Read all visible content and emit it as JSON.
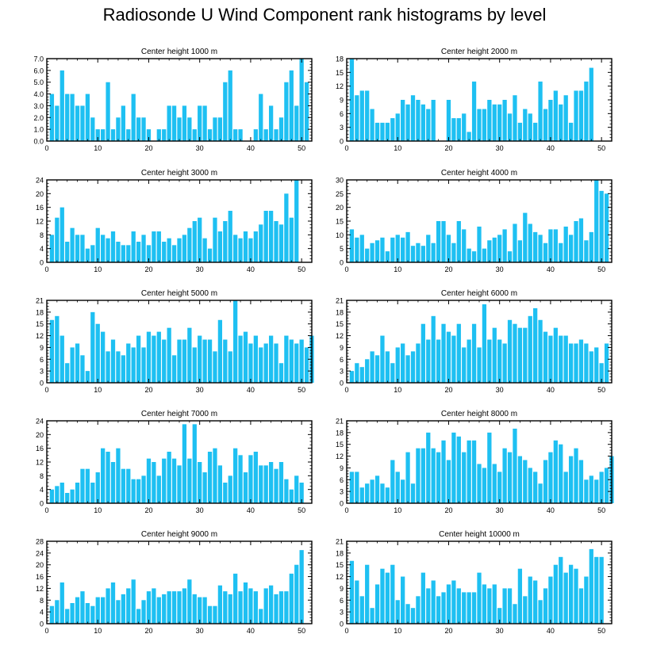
{
  "title": "Radiosonde U Wind Component rank histograms by level",
  "colors": {
    "bar": "#1ec0f2",
    "axis": "#000000",
    "background": "#ffffff"
  },
  "chart_data": [
    {
      "type": "bar",
      "title": "Center height 1000 m",
      "x": [
        0,
        1,
        2,
        3,
        4,
        5,
        6,
        7,
        8,
        9,
        10,
        11,
        12,
        13,
        14,
        15,
        16,
        17,
        18,
        19,
        20,
        21,
        22,
        23,
        24,
        25,
        26,
        27,
        28,
        29,
        30,
        31,
        32,
        33,
        34,
        35,
        36,
        37,
        38,
        39,
        40,
        41,
        42,
        43,
        44,
        45,
        46,
        47,
        48,
        49,
        50,
        51,
        52
      ],
      "values": [
        0,
        4,
        3,
        6,
        4,
        4,
        3,
        3,
        4,
        2,
        1,
        1,
        5,
        1,
        2,
        3,
        1,
        4,
        2,
        2,
        1,
        0,
        1,
        1,
        3,
        3,
        2,
        3,
        2,
        1,
        3,
        3,
        1,
        2,
        2,
        5,
        6,
        1,
        1,
        0,
        0,
        1,
        4,
        1,
        3,
        1,
        2,
        5,
        6,
        3,
        7,
        5,
        0
      ],
      "xlim": [
        0,
        52
      ],
      "ylim": [
        0,
        7
      ],
      "yticks": [
        "0.0",
        "1.0",
        "2.0",
        "3.0",
        "4.0",
        "5.0",
        "6.0",
        "7.0"
      ],
      "xticks": [
        "0",
        "10",
        "20",
        "30",
        "40",
        "50"
      ],
      "xlabel": "",
      "ylabel": ""
    },
    {
      "type": "bar",
      "title": "Center height 2000 m",
      "x": [
        0,
        1,
        2,
        3,
        4,
        5,
        6,
        7,
        8,
        9,
        10,
        11,
        12,
        13,
        14,
        15,
        16,
        17,
        18,
        19,
        20,
        21,
        22,
        23,
        24,
        25,
        26,
        27,
        28,
        29,
        30,
        31,
        32,
        33,
        34,
        35,
        36,
        37,
        38,
        39,
        40,
        41,
        42,
        43,
        44,
        45,
        46,
        47,
        48,
        49,
        50,
        51,
        52
      ],
      "values": [
        0,
        18,
        10,
        11,
        11,
        7,
        4,
        4,
        4,
        5,
        6,
        9,
        8,
        10,
        9,
        8,
        7,
        9,
        0,
        0,
        9,
        5,
        5,
        6,
        2,
        13,
        7,
        7,
        9,
        8,
        8,
        9,
        6,
        10,
        4,
        7,
        6,
        4,
        13,
        7,
        9,
        11,
        8,
        10,
        4,
        11,
        11,
        13,
        16,
        0,
        0,
        0,
        0
      ],
      "xlim": [
        0,
        52
      ],
      "ylim": [
        0,
        18
      ],
      "yticks": [
        "0",
        "3",
        "6",
        "9",
        "12",
        "15",
        "18"
      ],
      "xticks": [
        "0",
        "10",
        "20",
        "30",
        "40",
        "50"
      ],
      "xlabel": "",
      "ylabel": ""
    },
    {
      "type": "bar",
      "title": "Center height 3000 m",
      "x": [
        0,
        1,
        2,
        3,
        4,
        5,
        6,
        7,
        8,
        9,
        10,
        11,
        12,
        13,
        14,
        15,
        16,
        17,
        18,
        19,
        20,
        21,
        22,
        23,
        24,
        25,
        26,
        27,
        28,
        29,
        30,
        31,
        32,
        33,
        34,
        35,
        36,
        37,
        38,
        39,
        40,
        41,
        42,
        43,
        44,
        45,
        46,
        47,
        48,
        49,
        50,
        51,
        52
      ],
      "values": [
        0,
        8,
        13,
        16,
        6,
        10,
        8,
        8,
        4,
        5,
        10,
        8,
        7,
        9,
        6,
        5,
        5,
        9,
        6,
        8,
        5,
        9,
        9,
        6,
        7,
        5,
        7,
        8,
        10,
        12,
        13,
        7,
        4,
        13,
        9,
        12,
        15,
        8,
        7,
        9,
        7,
        9,
        11,
        15,
        15,
        12,
        11,
        20,
        13,
        24,
        0,
        0,
        0
      ],
      "xlim": [
        0,
        52
      ],
      "ylim": [
        0,
        24
      ],
      "yticks": [
        "0",
        "4",
        "8",
        "12",
        "16",
        "20",
        "24"
      ],
      "xticks": [
        "0",
        "10",
        "20",
        "30",
        "40",
        "50"
      ],
      "xlabel": "",
      "ylabel": ""
    },
    {
      "type": "bar",
      "title": "Center height 4000 m",
      "x": [
        0,
        1,
        2,
        3,
        4,
        5,
        6,
        7,
        8,
        9,
        10,
        11,
        12,
        13,
        14,
        15,
        16,
        17,
        18,
        19,
        20,
        21,
        22,
        23,
        24,
        25,
        26,
        27,
        28,
        29,
        30,
        31,
        32,
        33,
        34,
        35,
        36,
        37,
        38,
        39,
        40,
        41,
        42,
        43,
        44,
        45,
        46,
        47,
        48,
        49,
        50,
        51,
        52
      ],
      "values": [
        0,
        12,
        9,
        10,
        5,
        7,
        8,
        9,
        4,
        9,
        10,
        9,
        11,
        6,
        7,
        6,
        10,
        7,
        15,
        15,
        10,
        7,
        15,
        12,
        5,
        4,
        13,
        5,
        8,
        9,
        10,
        12,
        4,
        14,
        8,
        18,
        14,
        11,
        10,
        7,
        12,
        12,
        7,
        13,
        10,
        15,
        16,
        8,
        11,
        30,
        26,
        25,
        0
      ],
      "xlim": [
        0,
        52
      ],
      "ylim": [
        0,
        30
      ],
      "yticks": [
        "0",
        "5",
        "10",
        "15",
        "20",
        "25",
        "30"
      ],
      "xticks": [
        "0",
        "10",
        "20",
        "30",
        "40",
        "50"
      ],
      "xlabel": "",
      "ylabel": ""
    },
    {
      "type": "bar",
      "title": "Center height 5000 m",
      "x": [
        0,
        1,
        2,
        3,
        4,
        5,
        6,
        7,
        8,
        9,
        10,
        11,
        12,
        13,
        14,
        15,
        16,
        17,
        18,
        19,
        20,
        21,
        22,
        23,
        24,
        25,
        26,
        27,
        28,
        29,
        30,
        31,
        32,
        33,
        34,
        35,
        36,
        37,
        38,
        39,
        40,
        41,
        42,
        43,
        44,
        45,
        46,
        47,
        48,
        49,
        50,
        51,
        52
      ],
      "values": [
        0,
        16,
        17,
        12,
        5,
        9,
        10,
        7,
        3,
        18,
        15,
        13,
        8,
        11,
        8,
        7,
        10,
        9,
        12,
        9,
        13,
        12,
        13,
        11,
        14,
        7,
        11,
        11,
        14,
        9,
        12,
        11,
        11,
        8,
        16,
        11,
        8,
        21,
        12,
        13,
        10,
        12,
        9,
        10,
        12,
        10,
        5,
        12,
        11,
        10,
        11,
        9,
        12
      ],
      "xlim": [
        0,
        52
      ],
      "ylim": [
        0,
        21
      ],
      "yticks": [
        "0",
        "3",
        "6",
        "9",
        "12",
        "15",
        "18",
        "21"
      ],
      "xticks": [
        "0",
        "10",
        "20",
        "30",
        "40",
        "50"
      ],
      "xlabel": "",
      "ylabel": ""
    },
    {
      "type": "bar",
      "title": "Center height 6000 m",
      "x": [
        0,
        1,
        2,
        3,
        4,
        5,
        6,
        7,
        8,
        9,
        10,
        11,
        12,
        13,
        14,
        15,
        16,
        17,
        18,
        19,
        20,
        21,
        22,
        23,
        24,
        25,
        26,
        27,
        28,
        29,
        30,
        31,
        32,
        33,
        34,
        35,
        36,
        37,
        38,
        39,
        40,
        41,
        42,
        43,
        44,
        45,
        46,
        47,
        48,
        49,
        50,
        51,
        52
      ],
      "values": [
        0,
        3,
        5,
        4,
        6,
        8,
        7,
        12,
        8,
        5,
        9,
        10,
        7,
        8,
        10,
        15,
        11,
        17,
        11,
        15,
        13,
        12,
        15,
        9,
        11,
        15,
        9,
        20,
        11,
        14,
        11,
        10,
        16,
        15,
        14,
        14,
        17,
        19,
        16,
        13,
        12,
        14,
        12,
        12,
        10,
        10,
        11,
        10,
        8,
        9,
        5,
        10,
        0
      ],
      "xlim": [
        0,
        52
      ],
      "ylim": [
        0,
        21
      ],
      "yticks": [
        "0",
        "3",
        "6",
        "9",
        "12",
        "15",
        "18",
        "21"
      ],
      "xticks": [
        "0",
        "10",
        "20",
        "30",
        "40",
        "50"
      ],
      "xlabel": "",
      "ylabel": ""
    },
    {
      "type": "bar",
      "title": "Center height 7000 m",
      "x": [
        0,
        1,
        2,
        3,
        4,
        5,
        6,
        7,
        8,
        9,
        10,
        11,
        12,
        13,
        14,
        15,
        16,
        17,
        18,
        19,
        20,
        21,
        22,
        23,
        24,
        25,
        26,
        27,
        28,
        29,
        30,
        31,
        32,
        33,
        34,
        35,
        36,
        37,
        38,
        39,
        40,
        41,
        42,
        43,
        44,
        45,
        46,
        47,
        48,
        49,
        50,
        51,
        52
      ],
      "values": [
        0,
        4,
        5,
        6,
        3,
        4,
        6,
        10,
        10,
        6,
        9,
        16,
        15,
        12,
        16,
        10,
        10,
        7,
        7,
        8,
        13,
        12,
        8,
        13,
        15,
        13,
        11,
        23,
        13,
        23,
        12,
        9,
        15,
        16,
        11,
        6,
        8,
        16,
        14,
        9,
        14,
        15,
        11,
        11,
        12,
        10,
        12,
        7,
        4,
        8,
        6,
        0,
        0
      ],
      "xlim": [
        0,
        52
      ],
      "ylim": [
        0,
        24
      ],
      "yticks": [
        "0",
        "4",
        "8",
        "12",
        "16",
        "20",
        "24"
      ],
      "xticks": [
        "0",
        "10",
        "20",
        "30",
        "40",
        "50"
      ],
      "xlabel": "",
      "ylabel": ""
    },
    {
      "type": "bar",
      "title": "Center height 8000 m",
      "x": [
        0,
        1,
        2,
        3,
        4,
        5,
        6,
        7,
        8,
        9,
        10,
        11,
        12,
        13,
        14,
        15,
        16,
        17,
        18,
        19,
        20,
        21,
        22,
        23,
        24,
        25,
        26,
        27,
        28,
        29,
        30,
        31,
        32,
        33,
        34,
        35,
        36,
        37,
        38,
        39,
        40,
        41,
        42,
        43,
        44,
        45,
        46,
        47,
        48,
        49,
        50,
        51,
        52
      ],
      "values": [
        0,
        8,
        8,
        4,
        5,
        6,
        7,
        5,
        4,
        11,
        8,
        6,
        13,
        5,
        14,
        14,
        18,
        14,
        13,
        16,
        11,
        18,
        17,
        13,
        16,
        16,
        10,
        9,
        18,
        10,
        8,
        14,
        13,
        19,
        12,
        11,
        9,
        8,
        5,
        11,
        13,
        16,
        15,
        8,
        12,
        14,
        11,
        6,
        7,
        6,
        8,
        9,
        12
      ],
      "xlim": [
        0,
        52
      ],
      "ylim": [
        0,
        21
      ],
      "yticks": [
        "0",
        "3",
        "6",
        "9",
        "12",
        "15",
        "18",
        "21"
      ],
      "xticks": [
        "0",
        "10",
        "20",
        "30",
        "40",
        "50"
      ],
      "xlabel": "",
      "ylabel": ""
    },
    {
      "type": "bar",
      "title": "Center height 9000 m",
      "x": [
        0,
        1,
        2,
        3,
        4,
        5,
        6,
        7,
        8,
        9,
        10,
        11,
        12,
        13,
        14,
        15,
        16,
        17,
        18,
        19,
        20,
        21,
        22,
        23,
        24,
        25,
        26,
        27,
        28,
        29,
        30,
        31,
        32,
        33,
        34,
        35,
        36,
        37,
        38,
        39,
        40,
        41,
        42,
        43,
        44,
        45,
        46,
        47,
        48,
        49,
        50,
        51,
        52
      ],
      "values": [
        0,
        6,
        8,
        14,
        5,
        7,
        9,
        11,
        7,
        6,
        9,
        9,
        12,
        14,
        8,
        10,
        12,
        15,
        5,
        8,
        11,
        12,
        9,
        10,
        11,
        11,
        11,
        12,
        15,
        10,
        9,
        9,
        6,
        6,
        13,
        11,
        10,
        17,
        11,
        14,
        12,
        11,
        5,
        12,
        13,
        10,
        11,
        11,
        17,
        20,
        25,
        0,
        0
      ],
      "xlim": [
        0,
        52
      ],
      "ylim": [
        0,
        28
      ],
      "yticks": [
        "0",
        "4",
        "8",
        "12",
        "16",
        "20",
        "24",
        "28"
      ],
      "xticks": [
        "0",
        "10",
        "20",
        "30",
        "40",
        "50"
      ],
      "xlabel": "",
      "ylabel": ""
    },
    {
      "type": "bar",
      "title": "Center height 10000 m",
      "x": [
        0,
        1,
        2,
        3,
        4,
        5,
        6,
        7,
        8,
        9,
        10,
        11,
        12,
        13,
        14,
        15,
        16,
        17,
        18,
        19,
        20,
        21,
        22,
        23,
        24,
        25,
        26,
        27,
        28,
        29,
        30,
        31,
        32,
        33,
        34,
        35,
        36,
        37,
        38,
        39,
        40,
        41,
        42,
        43,
        44,
        45,
        46,
        47,
        48,
        49,
        50,
        51,
        52
      ],
      "values": [
        0,
        16,
        11,
        7,
        15,
        4,
        10,
        14,
        13,
        15,
        6,
        12,
        5,
        4,
        7,
        13,
        9,
        11,
        7,
        8,
        10,
        11,
        9,
        8,
        8,
        8,
        13,
        10,
        9,
        10,
        4,
        9,
        9,
        5,
        14,
        7,
        12,
        11,
        6,
        9,
        12,
        15,
        17,
        13,
        15,
        14,
        9,
        12,
        19,
        17,
        17,
        0,
        0
      ],
      "xlim": [
        0,
        52
      ],
      "ylim": [
        0,
        21
      ],
      "yticks": [
        "0",
        "3",
        "6",
        "9",
        "12",
        "15",
        "18",
        "21"
      ],
      "xticks": [
        "0",
        "10",
        "20",
        "30",
        "40",
        "50"
      ],
      "xlabel": "",
      "ylabel": ""
    }
  ]
}
